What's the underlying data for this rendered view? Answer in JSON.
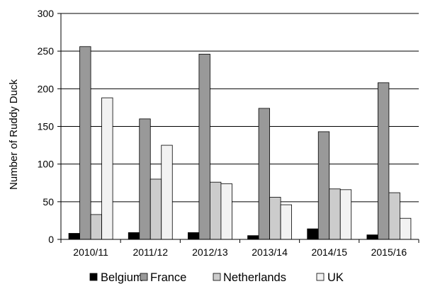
{
  "chart_data": {
    "type": "bar",
    "title": "",
    "xlabel": "",
    "ylabel": "Number of Ruddy Duck",
    "ylim": [
      0,
      300
    ],
    "yticks": [
      0,
      50,
      100,
      150,
      200,
      250,
      300
    ],
    "grid": true,
    "legend_position": "bottom",
    "categories": [
      "2010/11",
      "2011/12",
      "2012/13",
      "2013/14",
      "2014/15",
      "2015/16"
    ],
    "series": [
      {
        "name": "Belgium",
        "color": "#000000",
        "values": [
          8,
          9,
          9,
          5,
          14,
          6
        ]
      },
      {
        "name": "France",
        "color": "#999999",
        "values": [
          256,
          160,
          246,
          174,
          143,
          208
        ]
      },
      {
        "name": "Netherlands",
        "color": "#cccccc",
        "values": [
          33,
          80,
          76,
          56,
          67,
          62
        ]
      },
      {
        "name": "UK",
        "color": "#f2f2f2",
        "values": [
          188,
          125,
          74,
          46,
          66,
          28
        ]
      }
    ]
  }
}
